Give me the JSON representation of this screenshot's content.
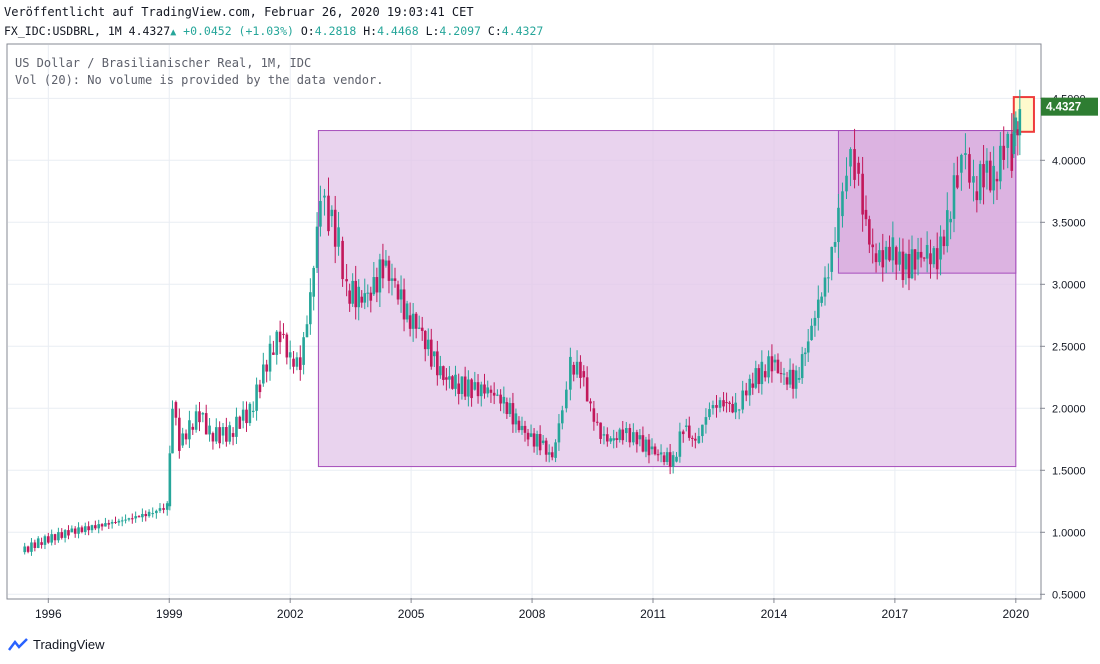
{
  "header": {
    "published": "Veröffentlicht auf TradingView.com, Februar 26, 2020 19:03:41 CET",
    "symbol": "FX_IDC:USDBRL, 1M",
    "last": "4.4327",
    "change": "+0.0452 (+1.03%)",
    "open_label": "O:",
    "open": "4.2818",
    "high_label": "H:",
    "high": "4.4468",
    "low_label": "L:",
    "low": "4.2097",
    "close_label": "C:",
    "close": "4.4327"
  },
  "legend": {
    "line1": "US Dollar / Brasilianischer Real, 1M, IDC",
    "line2": "Vol (20): No volume is provided by the data vendor."
  },
  "footer": {
    "brand": "TradingView"
  },
  "colors": {
    "up": "#26a69a",
    "down": "#c2185b",
    "rect_outer": "#e1c4e8",
    "rect_inner": "#d7a8dc",
    "rect_border": "#a64dbb",
    "highlight": "#fffacd",
    "highlight_border": "#ef3b3b",
    "price_label": "#2e7d32"
  },
  "chart_data": {
    "type": "candlestick",
    "title": "US Dollar / Brasilianischer Real, 1M, IDC",
    "x_ticks": [
      "1996",
      "1999",
      "2002",
      "2005",
      "2008",
      "2011",
      "2014",
      "2017",
      "2020"
    ],
    "y_ticks": [
      "0.5000",
      "1.0000",
      "1.5000",
      "2.0000",
      "2.5000",
      "3.0000",
      "3.5000",
      "4.0000",
      "4.5000"
    ],
    "ylim": [
      0.47,
      4.93
    ],
    "last_price": "4.4327",
    "series": [
      {
        "t": 1995.33,
        "c": 0.84
      },
      {
        "t": 1995.75,
        "c": 0.92
      },
      {
        "t": 1996.5,
        "c": 1.0
      },
      {
        "t": 1997.5,
        "c": 1.07
      },
      {
        "t": 1998.5,
        "c": 1.15
      },
      {
        "t": 1998.95,
        "c": 1.21
      },
      {
        "t": 1999.08,
        "c": 2.05
      },
      {
        "t": 1999.25,
        "c": 1.7
      },
      {
        "t": 1999.5,
        "c": 1.85
      },
      {
        "t": 1999.75,
        "c": 1.95
      },
      {
        "t": 2000.0,
        "c": 1.8
      },
      {
        "t": 2000.25,
        "c": 1.78
      },
      {
        "t": 2000.5,
        "c": 1.8
      },
      {
        "t": 2000.75,
        "c": 1.9
      },
      {
        "t": 2001.0,
        "c": 1.97
      },
      {
        "t": 2001.25,
        "c": 2.2
      },
      {
        "t": 2001.5,
        "c": 2.45
      },
      {
        "t": 2001.75,
        "c": 2.6
      },
      {
        "t": 2002.0,
        "c": 2.4
      },
      {
        "t": 2002.25,
        "c": 2.35
      },
      {
        "t": 2002.5,
        "c": 2.9
      },
      {
        "t": 2002.75,
        "c": 3.7
      },
      {
        "t": 2002.95,
        "c": 3.55
      },
      {
        "t": 2003.2,
        "c": 3.35
      },
      {
        "t": 2003.4,
        "c": 2.95
      },
      {
        "t": 2003.7,
        "c": 2.9
      },
      {
        "t": 2004.0,
        "c": 2.92
      },
      {
        "t": 2004.3,
        "c": 3.15
      },
      {
        "t": 2004.6,
        "c": 3.0
      },
      {
        "t": 2004.9,
        "c": 2.75
      },
      {
        "t": 2005.2,
        "c": 2.65
      },
      {
        "t": 2005.5,
        "c": 2.42
      },
      {
        "t": 2005.8,
        "c": 2.25
      },
      {
        "t": 2006.1,
        "c": 2.2
      },
      {
        "t": 2006.5,
        "c": 2.15
      },
      {
        "t": 2006.9,
        "c": 2.15
      },
      {
        "t": 2007.3,
        "c": 2.05
      },
      {
        "t": 2007.6,
        "c": 1.9
      },
      {
        "t": 2007.9,
        "c": 1.77
      },
      {
        "t": 2008.2,
        "c": 1.72
      },
      {
        "t": 2008.5,
        "c": 1.6
      },
      {
        "t": 2008.75,
        "c": 2.0
      },
      {
        "t": 2008.95,
        "c": 2.35
      },
      {
        "t": 2009.2,
        "c": 2.3
      },
      {
        "t": 2009.45,
        "c": 2.0
      },
      {
        "t": 2009.7,
        "c": 1.78
      },
      {
        "t": 2009.95,
        "c": 1.74
      },
      {
        "t": 2010.25,
        "c": 1.8
      },
      {
        "t": 2010.6,
        "c": 1.75
      },
      {
        "t": 2010.9,
        "c": 1.67
      },
      {
        "t": 2011.2,
        "c": 1.62
      },
      {
        "t": 2011.5,
        "c": 1.57
      },
      {
        "t": 2011.75,
        "c": 1.85
      },
      {
        "t": 2012.05,
        "c": 1.72
      },
      {
        "t": 2012.4,
        "c": 2.0
      },
      {
        "t": 2012.75,
        "c": 2.05
      },
      {
        "t": 2013.05,
        "c": 1.99
      },
      {
        "t": 2013.4,
        "c": 2.2
      },
      {
        "t": 2013.7,
        "c": 2.3
      },
      {
        "t": 2013.95,
        "c": 2.37
      },
      {
        "t": 2014.25,
        "c": 2.25
      },
      {
        "t": 2014.55,
        "c": 2.23
      },
      {
        "t": 2014.85,
        "c": 2.55
      },
      {
        "t": 2015.1,
        "c": 2.85
      },
      {
        "t": 2015.35,
        "c": 3.1
      },
      {
        "t": 2015.6,
        "c": 3.55
      },
      {
        "t": 2015.8,
        "c": 3.95
      },
      {
        "t": 2016.0,
        "c": 3.98
      },
      {
        "t": 2016.2,
        "c": 3.6
      },
      {
        "t": 2016.45,
        "c": 3.25
      },
      {
        "t": 2016.7,
        "c": 3.2
      },
      {
        "t": 2016.95,
        "c": 3.3
      },
      {
        "t": 2017.2,
        "c": 3.12
      },
      {
        "t": 2017.5,
        "c": 3.2
      },
      {
        "t": 2017.8,
        "c": 3.25
      },
      {
        "t": 2018.05,
        "c": 3.2
      },
      {
        "t": 2018.3,
        "c": 3.5
      },
      {
        "t": 2018.55,
        "c": 3.9
      },
      {
        "t": 2018.75,
        "c": 4.05
      },
      {
        "t": 2018.95,
        "c": 3.75
      },
      {
        "t": 2019.2,
        "c": 3.9
      },
      {
        "t": 2019.45,
        "c": 3.85
      },
      {
        "t": 2019.7,
        "c": 4.1
      },
      {
        "t": 2019.9,
        "c": 4.05
      },
      {
        "t": 2020.0,
        "c": 4.25
      },
      {
        "t": 2020.1,
        "c": 4.4327
      }
    ],
    "zones": [
      {
        "name": "range-2002-2020",
        "t0": 2002.7,
        "t1": 2020.0,
        "y0": 1.53,
        "y1": 4.24
      },
      {
        "name": "range-2015-2020",
        "t0": 2015.6,
        "t1": 2020.0,
        "y0": 3.09,
        "y1": 4.24
      },
      {
        "name": "breakout-2020",
        "t0": 2019.95,
        "t1": 2020.45,
        "y0": 4.23,
        "y1": 4.51
      }
    ]
  }
}
